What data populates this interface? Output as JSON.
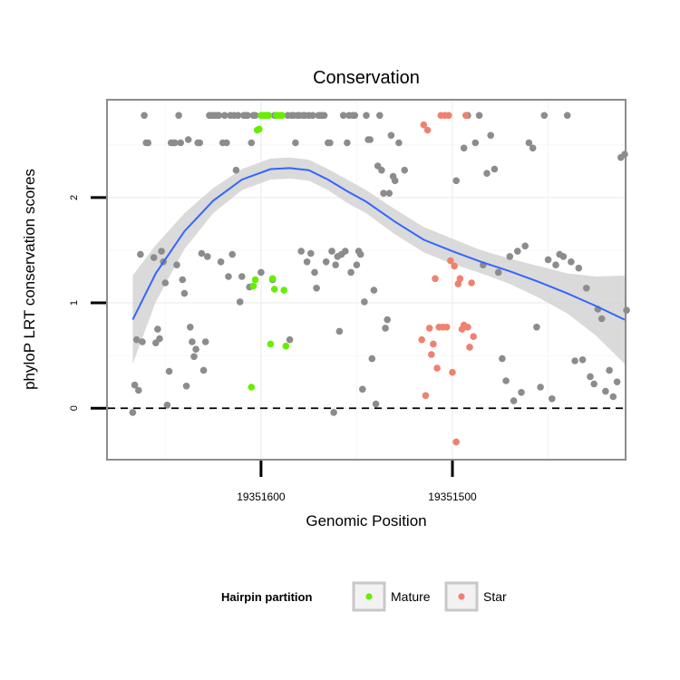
{
  "chart_data": {
    "type": "scatter",
    "title": "Conservation",
    "xlabel": "Genomic Position",
    "ylabel": "phyloP LRT conservation scores",
    "x_ticks": [
      "19351600",
      "19351500"
    ],
    "x_direction": "decreasing",
    "xlim": [
      19351680,
      19351410
    ],
    "y_ticks": [
      0,
      1,
      2
    ],
    "ylim": [
      -0.48,
      2.92
    ],
    "grid": true,
    "reference_line": {
      "y": 0,
      "style": "dashed"
    },
    "legend": {
      "title": "Hairpin partition",
      "position": "bottom",
      "entries": [
        "Mature",
        "Star"
      ]
    },
    "colors": {
      "other": "#8c8c8c",
      "Mature": "#66ee00",
      "Star": "#f08070",
      "fit": "#3366ff",
      "ribbon": "#d3d3d3"
    },
    "series": [
      {
        "partition": "other",
        "points": [
          [
            19351667,
            -0.04
          ],
          [
            19351666,
            0.22
          ],
          [
            19351665,
            0.65
          ],
          [
            19351664,
            0.17
          ],
          [
            19351663,
            1.46
          ],
          [
            19351662,
            0.63
          ],
          [
            19351661,
            2.78
          ],
          [
            19351660,
            2.52
          ],
          [
            19351659,
            2.52
          ],
          [
            19351656,
            1.43
          ],
          [
            19351655,
            0.62
          ],
          [
            19351654,
            0.75
          ],
          [
            19351653,
            0.66
          ],
          [
            19351652,
            1.49
          ],
          [
            19351651,
            1.39
          ],
          [
            19351650,
            1.19
          ],
          [
            19351649,
            0.03
          ],
          [
            19351648,
            0.35
          ],
          [
            19351647,
            2.52
          ],
          [
            19351646,
            2.52
          ],
          [
            19351645,
            2.52
          ],
          [
            19351644,
            1.36
          ],
          [
            19351643,
            2.78
          ],
          [
            19351642,
            2.52
          ],
          [
            19351641,
            1.22
          ],
          [
            19351640,
            1.09
          ],
          [
            19351639,
            0.21
          ],
          [
            19351638,
            2.55
          ],
          [
            19351637,
            0.77
          ],
          [
            19351636,
            0.63
          ],
          [
            19351635,
            0.49
          ],
          [
            19351634,
            0.56
          ],
          [
            19351633,
            2.52
          ],
          [
            19351632,
            2.52
          ],
          [
            19351631,
            1.47
          ],
          [
            19351630,
            0.36
          ],
          [
            19351629,
            0.63
          ],
          [
            19351628,
            1.44
          ],
          [
            19351627,
            2.78
          ],
          [
            19351626,
            2.78
          ],
          [
            19351625,
            2.78
          ],
          [
            19351624,
            2.78
          ],
          [
            19351623,
            2.78
          ],
          [
            19351622,
            2.78
          ],
          [
            19351621,
            1.39
          ],
          [
            19351620,
            2.52
          ],
          [
            19351619,
            2.78
          ],
          [
            19351618,
            2.52
          ],
          [
            19351617,
            1.25
          ],
          [
            19351616,
            2.78
          ],
          [
            19351615,
            1.46
          ],
          [
            19351614,
            2.78
          ],
          [
            19351613,
            2.26
          ],
          [
            19351612,
            2.78
          ],
          [
            19351611,
            1.01
          ],
          [
            19351610,
            1.25
          ],
          [
            19351609,
            2.78
          ],
          [
            19351608,
            2.78
          ],
          [
            19351607,
            2.78
          ],
          [
            19351606,
            1.15
          ],
          [
            19351605,
            2.52
          ],
          [
            19351604,
            2.78
          ],
          [
            19351603,
            2.78
          ],
          [
            19351600,
            1.29
          ],
          [
            19351598,
            2.78
          ],
          [
            19351596,
            2.78
          ],
          [
            19351594,
            1.22
          ],
          [
            19351593,
            2.78
          ],
          [
            19351586,
            2.78
          ],
          [
            19351585,
            0.65
          ],
          [
            19351584,
            2.78
          ],
          [
            19351583,
            2.78
          ],
          [
            19351582,
            2.52
          ],
          [
            19351581,
            2.78
          ],
          [
            19351580,
            2.78
          ],
          [
            19351579,
            1.49
          ],
          [
            19351578,
            2.78
          ],
          [
            19351577,
            2.78
          ],
          [
            19351576,
            1.39
          ],
          [
            19351575,
            2.78
          ],
          [
            19351574,
            1.47
          ],
          [
            19351573,
            2.78
          ],
          [
            19351572,
            1.29
          ],
          [
            19351571,
            1.14
          ],
          [
            19351570,
            2.78
          ],
          [
            19351569,
            2.78
          ],
          [
            19351568,
            2.78
          ],
          [
            19351567,
            2.78
          ],
          [
            19351566,
            1.39
          ],
          [
            19351565,
            2.52
          ],
          [
            19351564,
            2.52
          ],
          [
            19351563,
            1.49
          ],
          [
            19351562,
            -0.04
          ],
          [
            19351561,
            1.36
          ],
          [
            19351560,
            1.44
          ],
          [
            19351559,
            0.73
          ],
          [
            19351558,
            1.46
          ],
          [
            19351557,
            2.78
          ],
          [
            19351556,
            1.49
          ],
          [
            19351555,
            2.52
          ],
          [
            19351554,
            2.78
          ],
          [
            19351553,
            1.29
          ],
          [
            19351552,
            2.78
          ],
          [
            19351551,
            2.78
          ],
          [
            19351550,
            1.36
          ],
          [
            19351549,
            1.49
          ],
          [
            19351548,
            1.46
          ],
          [
            19351547,
            0.18
          ],
          [
            19351546,
            1.01
          ],
          [
            19351545,
            2.78
          ],
          [
            19351544,
            2.55
          ],
          [
            19351543,
            2.55
          ],
          [
            19351542,
            0.47
          ],
          [
            19351541,
            1.12
          ],
          [
            19351540,
            0.04
          ],
          [
            19351539,
            2.3
          ],
          [
            19351538,
            2.78
          ],
          [
            19351537,
            2.26
          ],
          [
            19351536,
            2.04
          ],
          [
            19351535,
            0.76
          ],
          [
            19351534,
            0.84
          ],
          [
            19351533,
            2.04
          ],
          [
            19351532,
            2.59
          ],
          [
            19351531,
            2.2
          ],
          [
            19351530,
            2.16
          ],
          [
            19351528,
            2.52
          ],
          [
            19351525,
            2.26
          ],
          [
            19351498,
            2.16
          ],
          [
            19351494,
            2.47
          ],
          [
            19351492,
            2.78
          ],
          [
            19351488,
            2.52
          ],
          [
            19351486,
            2.78
          ],
          [
            19351484,
            1.36
          ],
          [
            19351482,
            2.23
          ],
          [
            19351480,
            2.59
          ],
          [
            19351478,
            2.27
          ],
          [
            19351476,
            1.29
          ],
          [
            19351474,
            0.47
          ],
          [
            19351472,
            0.26
          ],
          [
            19351470,
            1.44
          ],
          [
            19351468,
            0.07
          ],
          [
            19351466,
            1.49
          ],
          [
            19351464,
            0.15
          ],
          [
            19351462,
            1.54
          ],
          [
            19351460,
            2.52
          ],
          [
            19351458,
            2.47
          ],
          [
            19351456,
            0.77
          ],
          [
            19351454,
            0.2
          ],
          [
            19351452,
            2.78
          ],
          [
            19351450,
            1.41
          ],
          [
            19351448,
            0.09
          ],
          [
            19351446,
            1.36
          ],
          [
            19351444,
            1.46
          ],
          [
            19351442,
            1.44
          ],
          [
            19351440,
            2.78
          ],
          [
            19351438,
            1.39
          ],
          [
            19351436,
            0.45
          ],
          [
            19351434,
            1.33
          ],
          [
            19351432,
            0.46
          ],
          [
            19351430,
            1.14
          ],
          [
            19351428,
            0.3
          ],
          [
            19351426,
            0.23
          ],
          [
            19351424,
            0.94
          ],
          [
            19351422,
            0.85
          ],
          [
            19351420,
            0.16
          ],
          [
            19351418,
            0.36
          ],
          [
            19351416,
            0.11
          ],
          [
            19351414,
            0.25
          ],
          [
            19351412,
            2.38
          ],
          [
            19351410,
            2.41
          ],
          [
            19351409,
            0.93
          ]
        ]
      },
      {
        "partition": "Mature",
        "points": [
          [
            19351605,
            0.2
          ],
          [
            19351604,
            1.16
          ],
          [
            19351603,
            1.22
          ],
          [
            19351602,
            2.64
          ],
          [
            19351601,
            2.65
          ],
          [
            19351600,
            2.78
          ],
          [
            19351599,
            2.78
          ],
          [
            19351598,
            2.78
          ],
          [
            19351597,
            2.78
          ],
          [
            19351596,
            2.78
          ],
          [
            19351595,
            0.61
          ],
          [
            19351594,
            1.23
          ],
          [
            19351593,
            1.13
          ],
          [
            19351592,
            2.78
          ],
          [
            19351591,
            2.78
          ],
          [
            19351590,
            2.78
          ],
          [
            19351589,
            2.78
          ],
          [
            19351588,
            1.12
          ],
          [
            19351587,
            0.59
          ]
        ]
      },
      {
        "partition": "Star",
        "points": [
          [
            19351516,
            0.65
          ],
          [
            19351515,
            2.69
          ],
          [
            19351514,
            0.12
          ],
          [
            19351513,
            2.64
          ],
          [
            19351512,
            0.76
          ],
          [
            19351511,
            0.51
          ],
          [
            19351510,
            0.61
          ],
          [
            19351509,
            1.23
          ],
          [
            19351508,
            0.38
          ],
          [
            19351507,
            0.77
          ],
          [
            19351506,
            2.78
          ],
          [
            19351505,
            0.77
          ],
          [
            19351504,
            2.78
          ],
          [
            19351503,
            0.77
          ],
          [
            19351502,
            2.78
          ],
          [
            19351501,
            1.4
          ],
          [
            19351500,
            0.34
          ],
          [
            19351499,
            1.35
          ],
          [
            19351498,
            -0.32
          ],
          [
            19351497,
            1.18
          ],
          [
            19351496,
            1.23
          ],
          [
            19351495,
            0.75
          ],
          [
            19351494,
            0.79
          ],
          [
            19351493,
            2.78
          ],
          [
            19351492,
            0.77
          ],
          [
            19351491,
            0.58
          ],
          [
            19351490,
            1.19
          ],
          [
            19351489,
            0.68
          ]
        ]
      }
    ],
    "smooth": {
      "x": [
        19351667,
        19351655,
        19351640,
        19351625,
        19351610,
        19351595,
        19351585,
        19351575,
        19351565,
        19351555,
        19351545,
        19351530,
        19351515,
        19351500,
        19351485,
        19351470,
        19351455,
        19351440,
        19351425,
        19351410
      ],
      "y": [
        0.84,
        1.28,
        1.68,
        1.97,
        2.17,
        2.27,
        2.28,
        2.26,
        2.17,
        2.06,
        1.96,
        1.77,
        1.6,
        1.49,
        1.39,
        1.3,
        1.2,
        1.09,
        0.97,
        0.84
      ],
      "band_halfwidth": [
        0.42,
        0.27,
        0.17,
        0.12,
        0.1,
        0.1,
        0.1,
        0.1,
        0.1,
        0.11,
        0.11,
        0.12,
        0.12,
        0.12,
        0.11,
        0.12,
        0.15,
        0.19,
        0.28,
        0.42
      ]
    }
  }
}
